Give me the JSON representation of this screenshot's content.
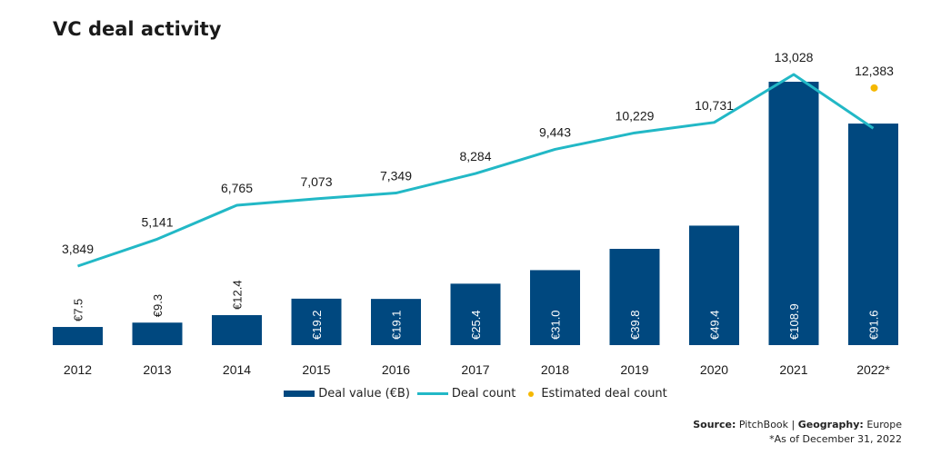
{
  "chart_data": {
    "type": "bar",
    "title": "VC deal activity",
    "categories": [
      "2012",
      "2013",
      "2014",
      "2015",
      "2016",
      "2017",
      "2018",
      "2019",
      "2020",
      "2021",
      "2022*"
    ],
    "series": [
      {
        "name": "Deal value (€B)",
        "type": "bar",
        "values": [
          7.5,
          9.3,
          12.4,
          19.2,
          19.1,
          25.4,
          31.0,
          39.8,
          49.4,
          108.9,
          91.6
        ],
        "labels": [
          "€7.5",
          "€9.3",
          "€12.4",
          "€19.2",
          "€19.1",
          "€25.4",
          "€31.0",
          "€39.8",
          "€49.4",
          "€108.9",
          "€91.6"
        ]
      },
      {
        "name": "Deal count",
        "type": "line",
        "values": [
          3849,
          5141,
          6765,
          7073,
          7349,
          8284,
          9443,
          10229,
          10731,
          13028,
          10450
        ],
        "labels": [
          "3,849",
          "5,141",
          "6,765",
          "7,073",
          "7,349",
          "8,284",
          "9,443",
          "10,229",
          "10,731",
          "13,028",
          ""
        ]
      },
      {
        "name": "Estimated deal count",
        "type": "scatter",
        "values": [
          null,
          null,
          null,
          null,
          null,
          null,
          null,
          null,
          null,
          null,
          12383
        ],
        "labels": [
          "",
          "",
          "",
          "",
          "",
          "",
          "",
          "",
          "",
          "",
          "12,383"
        ]
      }
    ],
    "colors": {
      "bar": "#00487f",
      "line": "#22b8c6",
      "estimate": "#f5b800"
    }
  },
  "legend": {
    "bar": "Deal value (€B)",
    "line": "Deal count",
    "dot": "Estimated deal count"
  },
  "source": {
    "source_label": "Source:",
    "source_value": "PitchBook",
    "sep": "|",
    "geo_label": "Geography:",
    "geo_value": "Europe",
    "note": "*As of December 31, 2022"
  }
}
